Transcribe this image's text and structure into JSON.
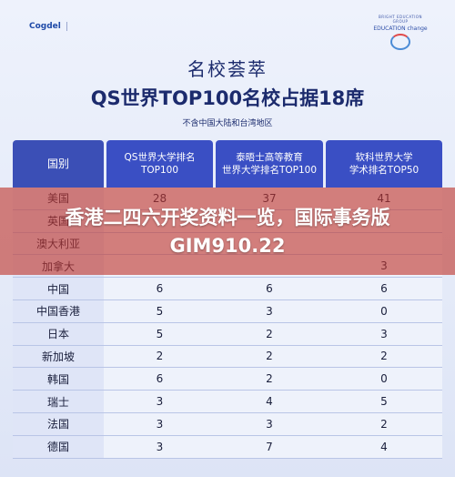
{
  "logos": {
    "left_brand": "Cogdel",
    "left_partner": "",
    "right_small": "BRIGHT EDUCATION GROUP",
    "right_text": "EDUCATION change"
  },
  "title": "名校荟萃",
  "headline_title": "QS世界TOP100名校占据18席",
  "subtitle": "不含中国大陆和台湾地区",
  "overlay_headline": "香港二四六开奖资料一览，国际事务版GIM910.22",
  "table": {
    "headers": [
      "国别",
      "QS世界大学排名\nTOP100",
      "泰晤士高等教育\n世界大学排名TOP100",
      "软科世界大学\n学术排名TOP50"
    ],
    "rows": [
      {
        "country": "美国",
        "qs": "28",
        "the": "37",
        "arwu": "41"
      },
      {
        "country": "英国",
        "qs": "",
        "the": "",
        "arwu": ""
      },
      {
        "country": "澳大利亚",
        "qs": "",
        "the": "",
        "arwu": ""
      },
      {
        "country": "加拿大",
        "qs": "",
        "the": "",
        "arwu": "3"
      },
      {
        "country": "中国",
        "qs": "6",
        "the": "6",
        "arwu": "6"
      },
      {
        "country": "中国香港",
        "qs": "5",
        "the": "3",
        "arwu": "0"
      },
      {
        "country": "日本",
        "qs": "5",
        "the": "2",
        "arwu": "3"
      },
      {
        "country": "新加坡",
        "qs": "2",
        "the": "2",
        "arwu": "2"
      },
      {
        "country": "韩国",
        "qs": "6",
        "the": "2",
        "arwu": "0"
      },
      {
        "country": "瑞士",
        "qs": "3",
        "the": "4",
        "arwu": "5"
      },
      {
        "country": "法国",
        "qs": "3",
        "the": "3",
        "arwu": "2"
      },
      {
        "country": "德国",
        "qs": "3",
        "the": "7",
        "arwu": "4"
      }
    ]
  }
}
